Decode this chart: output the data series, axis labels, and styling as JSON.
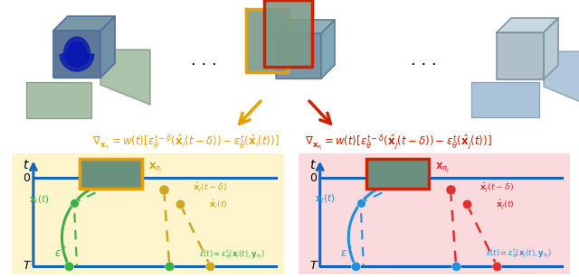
{
  "fig_width": 6.4,
  "fig_height": 3.07,
  "dpi": 100,
  "bg_color": "#ffffff",
  "orange_color": "#E8A000",
  "red_color": "#CC2200",
  "green_color": "#3CB044",
  "blue_curve": "#2090E0",
  "gold_color": "#CCA820",
  "red_dot": "#E03030",
  "axis_blue": "#1565C0",
  "teal_face": "#6A9080",
  "left_bg": "#FFF5CC",
  "right_bg": "#FADADD",
  "cube_front_left": "#6080a8",
  "cube_front_mid": "#88b0b8",
  "cube_front_right": "#b8c8d0",
  "cube_plane_green": "#88aa88",
  "cube_plane_blue": "#88aac0",
  "grad_left": "$\\nabla_{\\mathbf{x}_{\\pi_i}} = w(t)[\\epsilon_\\theta^{t-\\delta}(\\hat{\\mathbf{x}}_i(t-\\delta)) - \\epsilon_\\theta^t(\\hat{\\mathbf{x}}_i(t))]$",
  "grad_right": "$\\nabla_{\\mathbf{x}_{\\pi_j}} = w(t)[\\epsilon_\\theta^{t-\\delta}(\\hat{\\mathbf{x}}_j(t-\\delta)) - \\epsilon_\\theta^t(\\hat{\\mathbf{x}}_j(t))]$"
}
